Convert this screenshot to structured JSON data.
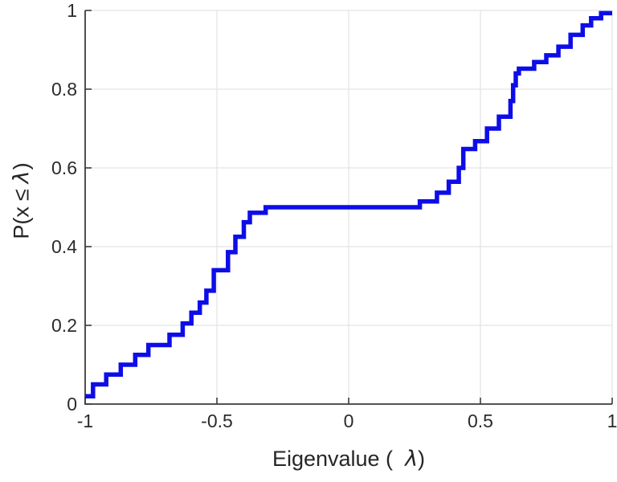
{
  "figure": {
    "background": "#ffffff"
  },
  "labels": {
    "xlabel_parts": {
      "p1": "Eigenvalue (",
      "lam": "λ",
      "p2": ")"
    },
    "ylabel_parts": {
      "p1": "P(x",
      "leq": "≤",
      "lam": "λ",
      "p2": ")"
    }
  },
  "chart_data": {
    "type": "line",
    "style": "ecdf-stairs",
    "title": "",
    "xlabel": "Eigenvalue ( λ)",
    "ylabel": "P(x ≤ λ)",
    "xlim": [
      -1,
      1
    ],
    "ylim": [
      0,
      1
    ],
    "xticks": [
      -1,
      -0.5,
      0,
      0.5,
      1
    ],
    "xtick_labels": [
      "-1",
      "-0.5",
      "0",
      "0.5",
      "1"
    ],
    "yticks": [
      0,
      0.2,
      0.4,
      0.6,
      0.8,
      1
    ],
    "ytick_labels": [
      "0",
      "0.2",
      "0.4",
      "0.6",
      "0.8",
      "1"
    ],
    "grid": true,
    "legend": "none",
    "colors": {
      "line": "#0D0DE8",
      "grid": "#E4E4E4",
      "axis": "#3C3C3C",
      "text": "#2B2B2B"
    },
    "line_width": 5.5,
    "series": [
      {
        "name": "eigenvalue-ecdf",
        "start": [
          -1.0,
          0.02
        ],
        "steps": [
          [
            -0.97,
            0.05
          ],
          [
            -0.92,
            0.075
          ],
          [
            -0.865,
            0.1
          ],
          [
            -0.81,
            0.125
          ],
          [
            -0.76,
            0.15
          ],
          [
            -0.68,
            0.176
          ],
          [
            -0.63,
            0.205
          ],
          [
            -0.597,
            0.232
          ],
          [
            -0.565,
            0.258
          ],
          [
            -0.54,
            0.288
          ],
          [
            -0.512,
            0.34
          ],
          [
            -0.458,
            0.386
          ],
          [
            -0.43,
            0.425
          ],
          [
            -0.398,
            0.462
          ],
          [
            -0.375,
            0.486
          ],
          [
            -0.315,
            0.5
          ],
          [
            0.27,
            0.515
          ],
          [
            0.335,
            0.537
          ],
          [
            0.38,
            0.565
          ],
          [
            0.418,
            0.6
          ],
          [
            0.435,
            0.648
          ],
          [
            0.48,
            0.668
          ],
          [
            0.525,
            0.7
          ],
          [
            0.57,
            0.73
          ],
          [
            0.614,
            0.77
          ],
          [
            0.624,
            0.81
          ],
          [
            0.634,
            0.84
          ],
          [
            0.646,
            0.852
          ],
          [
            0.704,
            0.869
          ],
          [
            0.75,
            0.886
          ],
          [
            0.796,
            0.908
          ],
          [
            0.842,
            0.938
          ],
          [
            0.888,
            0.962
          ],
          [
            0.92,
            0.98
          ],
          [
            0.958,
            0.993
          ]
        ],
        "end_x": 1.0
      }
    ]
  }
}
